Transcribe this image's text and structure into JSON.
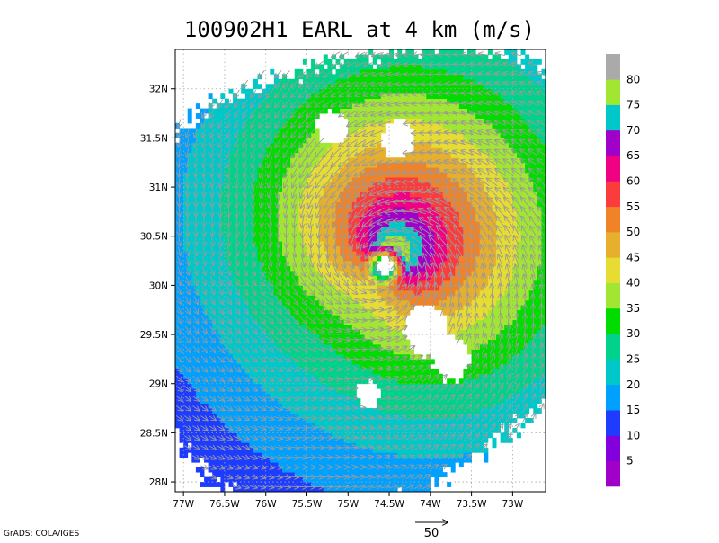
{
  "chart_data": {
    "type": "heatmap",
    "title": "100902H1 EARL at 4 km (m/s)",
    "x_ticks": [
      "77W",
      "76.5W",
      "76W",
      "75.5W",
      "75W",
      "74.5W",
      "74W",
      "73.5W",
      "73W"
    ],
    "x_tick_values": [
      -77,
      -76.5,
      -76,
      -75.5,
      -75,
      -74.5,
      -74,
      -73.5,
      -73
    ],
    "y_ticks": [
      "28N",
      "28.5N",
      "29N",
      "29.5N",
      "30N",
      "30.5N",
      "31N",
      "31.5N",
      "32N"
    ],
    "y_tick_values": [
      28,
      28.5,
      29,
      29.5,
      30,
      30.5,
      31,
      31.5,
      32
    ],
    "xlim": [
      -77.1,
      -72.6
    ],
    "ylim": [
      27.9,
      32.4
    ],
    "grid": true,
    "colorbar": {
      "labels": [
        "5",
        "10",
        "15",
        "20",
        "25",
        "30",
        "35",
        "40",
        "45",
        "50",
        "55",
        "60",
        "65",
        "70",
        "75",
        "80"
      ],
      "colors": [
        "#a000c8",
        "#8200dc",
        "#1e3cff",
        "#00a0ff",
        "#00c8c8",
        "#00d28c",
        "#00dc00",
        "#a0e632",
        "#e6dc32",
        "#e6af2d",
        "#f08228",
        "#fa3c3c",
        "#f00082",
        "#a000c8",
        "#00c8c8",
        "#a0e632",
        "#aaaaaa"
      ]
    },
    "storm_center": {
      "lon": -74.55,
      "lat": 30.2
    },
    "wind_field": {
      "peak_speed": 63,
      "rmw_deg": 0.22,
      "outer_decay_deg": 1.9,
      "asymmetry": 0.28,
      "asymmetry_direction_deg": 55
    },
    "vector_reference": {
      "label": "50",
      "speed": 50
    }
  },
  "footer": {
    "credit": "GrADS: COLA/IGES"
  }
}
